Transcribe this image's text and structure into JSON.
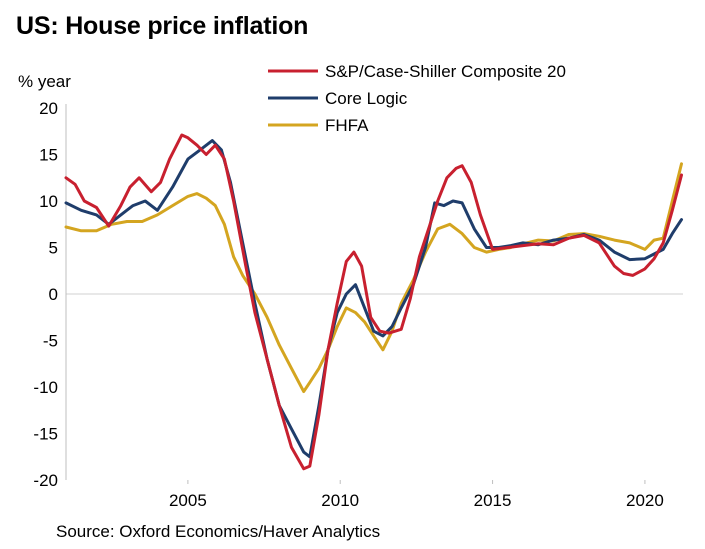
{
  "chart_data": {
    "type": "line",
    "title": "US: House price inflation",
    "ylabel": "% year",
    "xlabel": "",
    "source": "Source: Oxford Economics/Haver Analytics",
    "xlim": [
      2001.0,
      2021.25
    ],
    "ylim": [
      -20,
      20
    ],
    "y_ticks": [
      20,
      15,
      10,
      5,
      0,
      -5,
      -10,
      -15,
      -20
    ],
    "x_ticks": [
      2005,
      2010,
      2015,
      2020
    ],
    "zero_line": true,
    "legend_position": "top-right",
    "series": [
      {
        "name": "S&P/Case-Shiller Composite 20",
        "color": "#c8202f",
        "x": [
          2001.0,
          2001.3,
          2001.6,
          2002.0,
          2002.4,
          2002.8,
          2003.1,
          2003.4,
          2003.8,
          2004.1,
          2004.4,
          2004.8,
          2005.0,
          2005.3,
          2005.6,
          2005.9,
          2006.2,
          2006.5,
          2006.9,
          2007.2,
          2007.6,
          2008.0,
          2008.4,
          2008.8,
          2009.0,
          2009.3,
          2009.6,
          2009.9,
          2010.2,
          2010.45,
          2010.7,
          2011.0,
          2011.3,
          2011.6,
          2012.0,
          2012.3,
          2012.6,
          2012.9,
          2013.2,
          2013.5,
          2013.8,
          2014.0,
          2014.3,
          2014.6,
          2015.0,
          2015.5,
          2016.0,
          2016.5,
          2017.0,
          2017.5,
          2018.0,
          2018.5,
          2019.0,
          2019.3,
          2019.6,
          2020.0,
          2020.3,
          2020.6,
          2020.9,
          2021.2
        ],
        "values": [
          12.5,
          11.8,
          10.0,
          9.3,
          7.3,
          9.5,
          11.5,
          12.5,
          11.0,
          12.0,
          14.5,
          17.1,
          16.8,
          16.0,
          15.0,
          16.0,
          14.5,
          10.0,
          3.0,
          -2.0,
          -7.0,
          -12.0,
          -16.5,
          -18.8,
          -18.5,
          -13.0,
          -6.0,
          -1.0,
          3.5,
          4.5,
          3.0,
          -2.5,
          -4.0,
          -4.2,
          -3.8,
          -0.5,
          4.0,
          7.0,
          10.0,
          12.5,
          13.5,
          13.8,
          12.0,
          8.5,
          4.8,
          5.0,
          5.2,
          5.4,
          5.3,
          6.0,
          6.3,
          5.5,
          3.0,
          2.2,
          2.0,
          2.7,
          3.8,
          5.5,
          9.0,
          12.8
        ]
      },
      {
        "name": "Core Logic",
        "color": "#1f3d6b",
        "x": [
          2001.0,
          2001.5,
          2002.0,
          2002.4,
          2002.8,
          2003.2,
          2003.6,
          2004.0,
          2004.5,
          2005.0,
          2005.4,
          2005.8,
          2006.1,
          2006.4,
          2006.8,
          2007.2,
          2007.6,
          2008.0,
          2008.4,
          2008.8,
          2009.0,
          2009.3,
          2009.6,
          2009.9,
          2010.2,
          2010.5,
          2010.8,
          2011.1,
          2011.4,
          2011.7,
          2012.0,
          2012.4,
          2012.8,
          2013.1,
          2013.4,
          2013.7,
          2014.0,
          2014.4,
          2014.8,
          2015.2,
          2015.6,
          2016.0,
          2016.5,
          2017.0,
          2017.5,
          2018.0,
          2018.5,
          2019.0,
          2019.5,
          2020.0,
          2020.3,
          2020.6,
          2020.9,
          2021.2
        ],
        "values": [
          9.8,
          9.0,
          8.5,
          7.5,
          8.5,
          9.5,
          10.0,
          9.0,
          11.5,
          14.5,
          15.5,
          16.5,
          15.5,
          12.0,
          5.5,
          -1.0,
          -7.0,
          -12.0,
          -14.5,
          -17.0,
          -17.5,
          -12.0,
          -6.0,
          -2.0,
          0.0,
          1.0,
          -1.5,
          -4.0,
          -4.5,
          -3.5,
          -1.5,
          1.0,
          5.0,
          9.8,
          9.5,
          10.0,
          9.8,
          7.0,
          5.0,
          5.0,
          5.2,
          5.5,
          5.3,
          5.8,
          6.0,
          6.4,
          5.8,
          4.5,
          3.7,
          3.8,
          4.3,
          4.8,
          6.5,
          8.0
        ]
      },
      {
        "name": "FHFA",
        "color": "#d4a520",
        "x": [
          2001.0,
          2001.5,
          2002.0,
          2002.5,
          2003.0,
          2003.5,
          2004.0,
          2004.5,
          2005.0,
          2005.3,
          2005.6,
          2005.9,
          2006.2,
          2006.5,
          2006.8,
          2007.2,
          2007.6,
          2008.0,
          2008.4,
          2008.8,
          2009.0,
          2009.3,
          2009.6,
          2009.9,
          2010.2,
          2010.5,
          2010.8,
          2011.1,
          2011.4,
          2011.7,
          2012.0,
          2012.4,
          2012.8,
          2013.2,
          2013.6,
          2014.0,
          2014.4,
          2014.8,
          2015.2,
          2015.6,
          2016.0,
          2016.5,
          2017.0,
          2017.5,
          2018.0,
          2018.5,
          2019.0,
          2019.5,
          2020.0,
          2020.3,
          2020.6,
          2020.9,
          2021.2
        ],
        "values": [
          7.2,
          6.8,
          6.8,
          7.5,
          7.8,
          7.8,
          8.5,
          9.5,
          10.5,
          10.8,
          10.3,
          9.5,
          7.5,
          4.0,
          2.0,
          0.0,
          -2.5,
          -5.5,
          -8.0,
          -10.5,
          -9.5,
          -8.0,
          -6.0,
          -3.5,
          -1.5,
          -2.0,
          -3.0,
          -4.5,
          -6.0,
          -4.0,
          -1.0,
          1.5,
          4.5,
          7.0,
          7.5,
          6.5,
          5.0,
          4.5,
          4.8,
          5.0,
          5.4,
          5.8,
          5.7,
          6.4,
          6.5,
          6.2,
          5.8,
          5.5,
          4.8,
          5.8,
          6.0,
          10.0,
          14.0
        ]
      }
    ]
  }
}
